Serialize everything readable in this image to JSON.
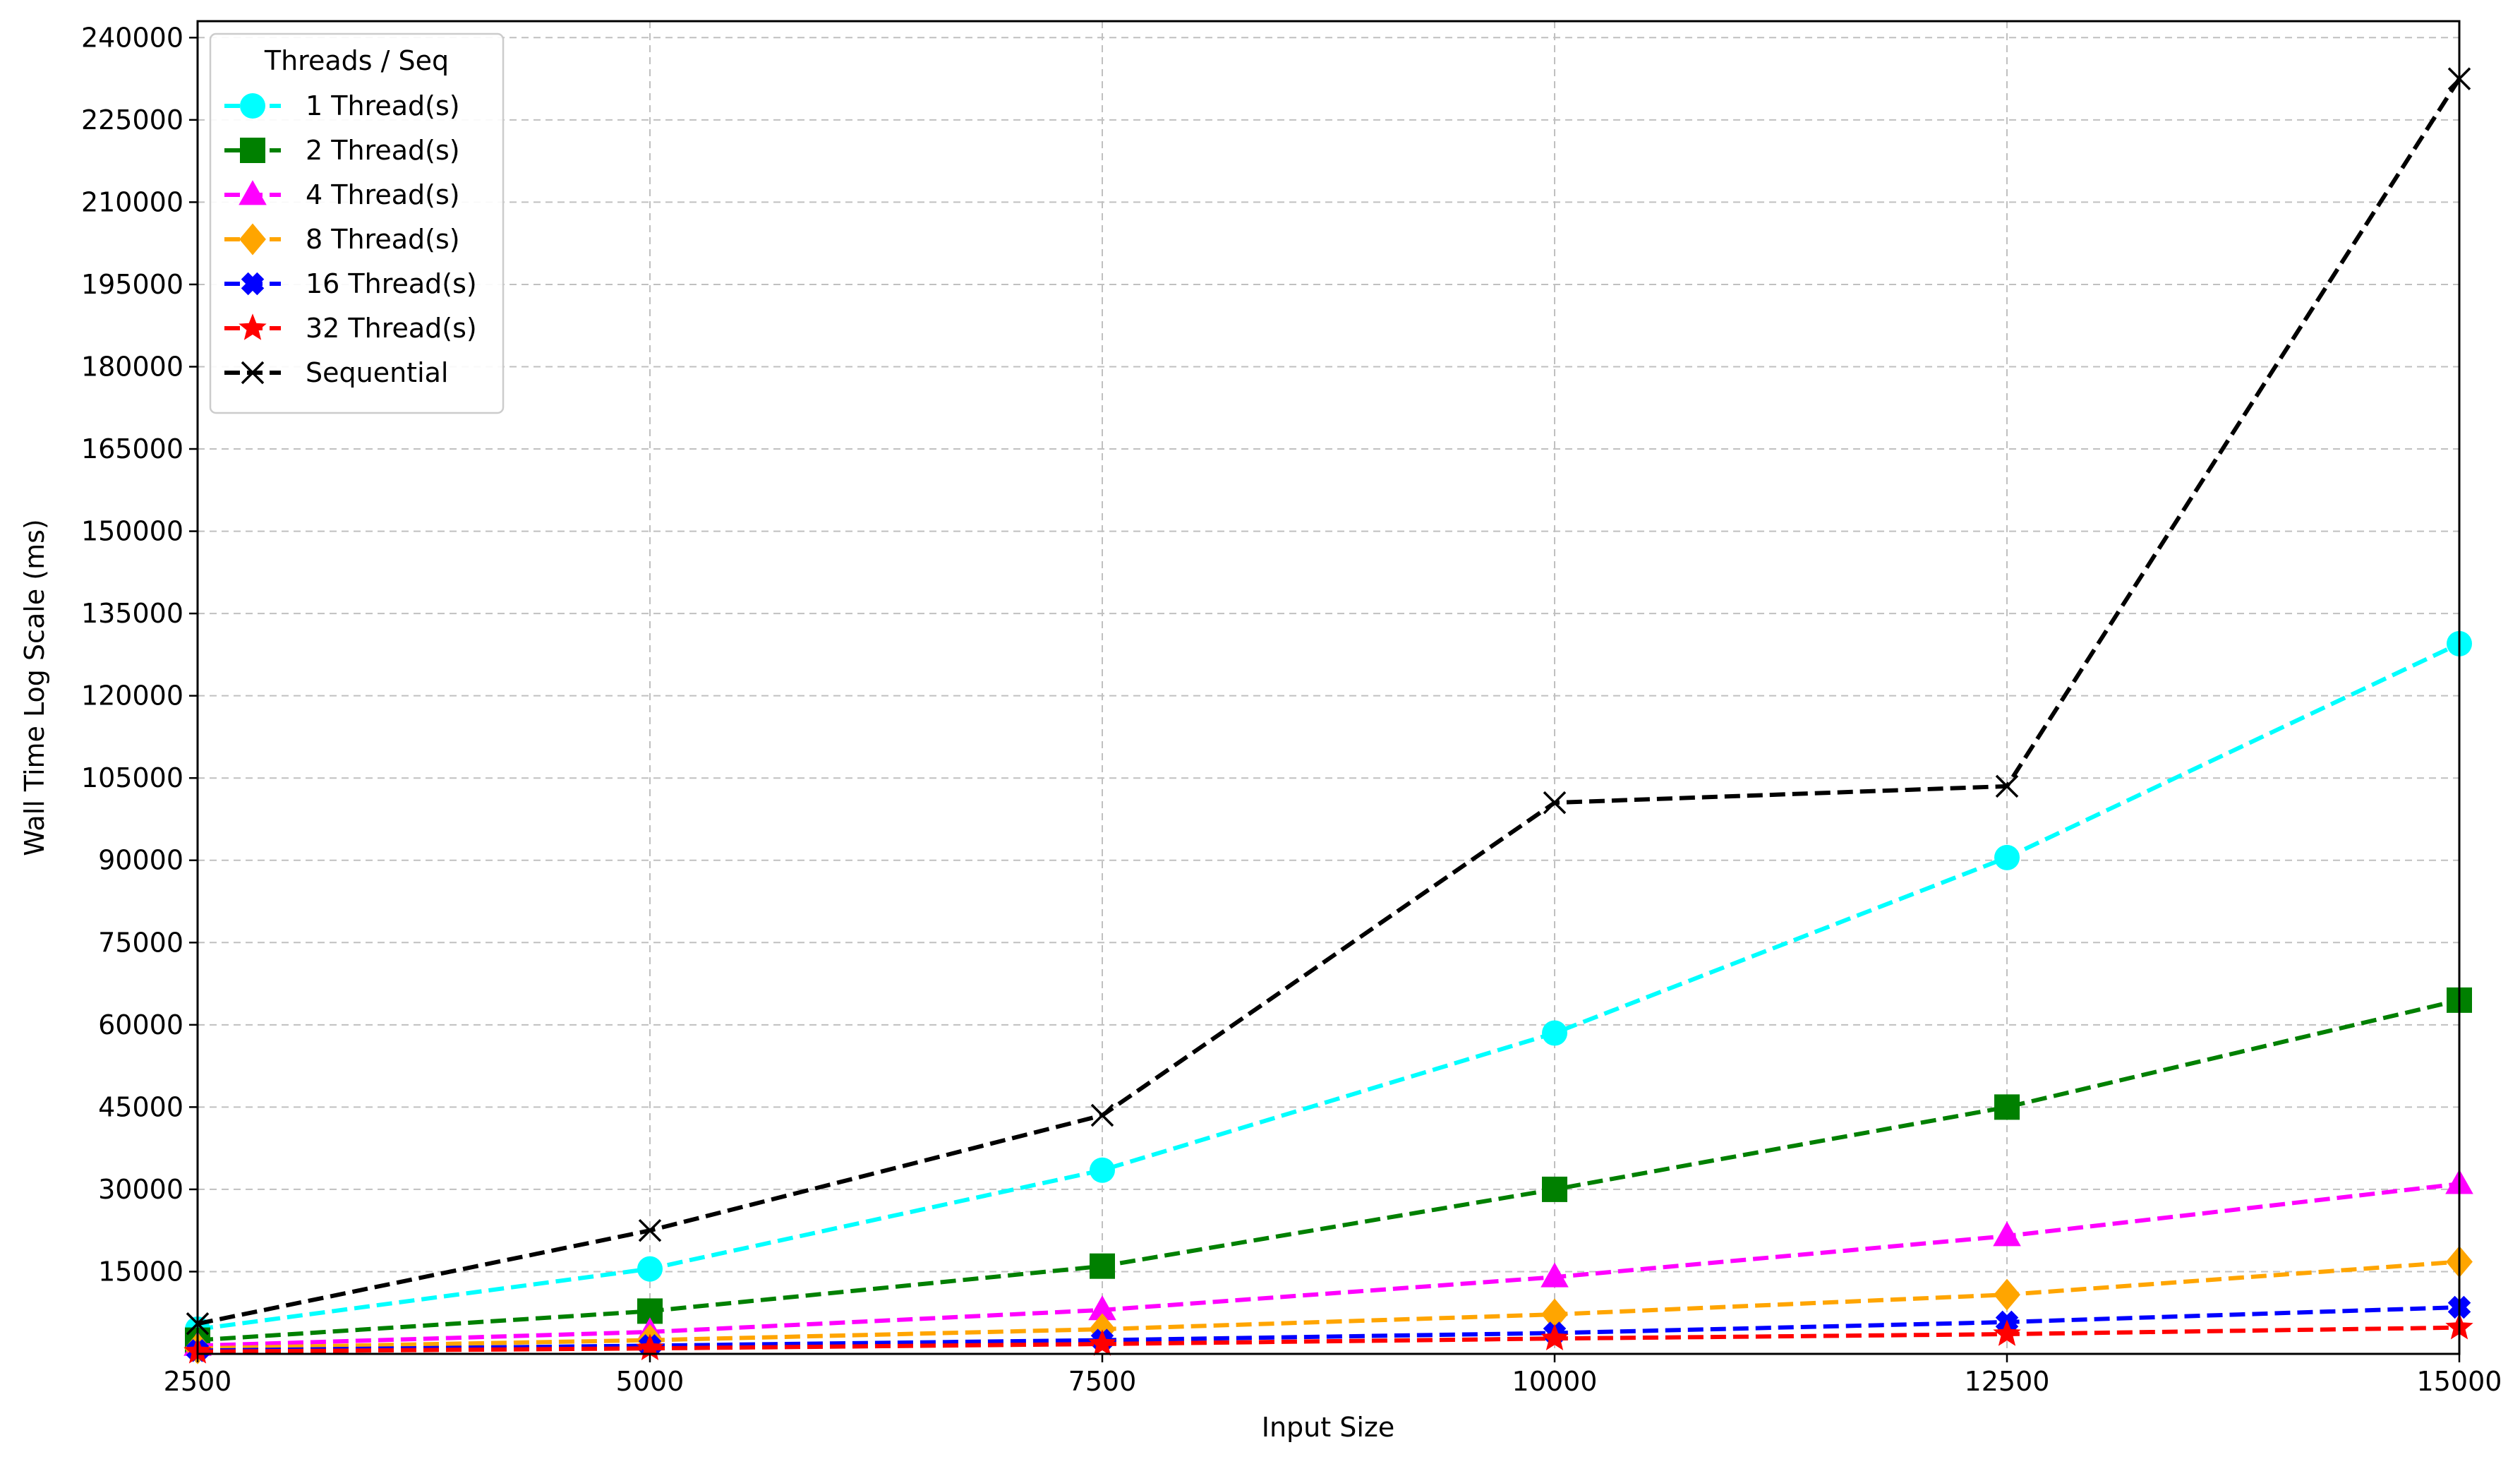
{
  "chart_data": {
    "type": "line",
    "xlabel": "Input Size",
    "ylabel": "Wall Time Log Scale (ms)",
    "x": [
      2500,
      5000,
      7500,
      10000,
      12500,
      15000
    ],
    "xlim": [
      2500,
      15000
    ],
    "ylim": [
      0,
      243000
    ],
    "x_ticks": [
      2500,
      5000,
      7500,
      10000,
      12500,
      15000
    ],
    "y_ticks": [
      15000,
      30000,
      45000,
      60000,
      75000,
      90000,
      105000,
      120000,
      135000,
      150000,
      165000,
      180000,
      195000,
      210000,
      225000,
      240000
    ],
    "x_tick_labels": [
      "2500",
      "5000",
      "7500",
      "10000",
      "12500",
      "15000"
    ],
    "y_tick_labels": [
      "15000",
      "30000",
      "45000",
      "60000",
      "75000",
      "90000",
      "105000",
      "120000",
      "135000",
      "150000",
      "165000",
      "180000",
      "195000",
      "210000",
      "225000",
      "240000"
    ],
    "grid": true,
    "legend_title": "Threads / Seq",
    "legend_position": "top-left",
    "series": [
      {
        "name": "1 Thread(s)",
        "color": "#00FFFF",
        "marker": "circle",
        "values": [
          4500,
          15500,
          33500,
          58500,
          90500,
          129500
        ]
      },
      {
        "name": "2 Thread(s)",
        "color": "#008000",
        "marker": "square",
        "values": [
          2500,
          7800,
          16000,
          30000,
          45000,
          64500
        ]
      },
      {
        "name": "4 Thread(s)",
        "color": "#FF00FF",
        "marker": "triangle",
        "values": [
          1500,
          4000,
          8000,
          14000,
          21500,
          31000
        ]
      },
      {
        "name": "8 Thread(s)",
        "color": "#FFA500",
        "marker": "diamond",
        "values": [
          1000,
          2500,
          4500,
          7200,
          10800,
          16800
        ]
      },
      {
        "name": "16 Thread(s)",
        "color": "#0000FF",
        "marker": "plus",
        "values": [
          600,
          1500,
          2500,
          3800,
          5800,
          8500
        ]
      },
      {
        "name": "32 Thread(s)",
        "color": "#FF0000",
        "marker": "star",
        "values": [
          400,
          1000,
          1800,
          2800,
          3600,
          4800
        ]
      },
      {
        "name": "Sequential",
        "color": "#000000",
        "marker": "x",
        "values": [
          5500,
          22500,
          43500,
          100500,
          103500,
          232500
        ]
      }
    ]
  }
}
